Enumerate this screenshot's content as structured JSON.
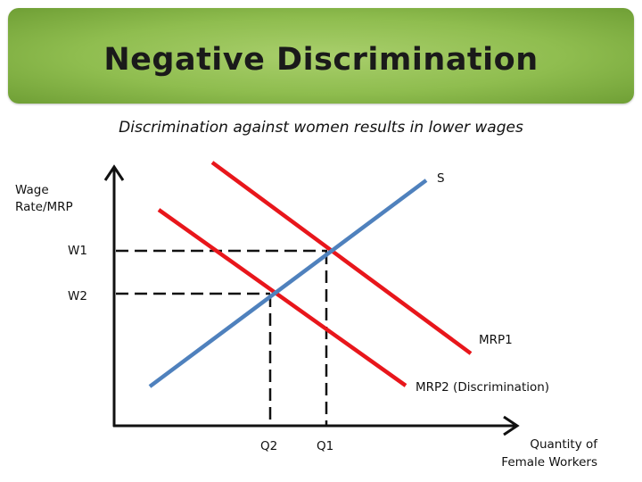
{
  "header": {
    "title": "Negative Discrimination",
    "subtitle": "Discrimination against women results in lower wages"
  },
  "diagram": {
    "y_axis_label_line1": "Wage",
    "y_axis_label_line2": "Rate/MRP",
    "x_axis_label_line1": "Quantity of",
    "x_axis_label_line2": "Female Workers",
    "supply_label": "S",
    "mrp1_label": "MRP1",
    "mrp2_label": "MRP2 (Discrimination)",
    "w1_label": "W1",
    "w2_label": "W2",
    "q1_label": "Q1",
    "q2_label": "Q2"
  },
  "colors": {
    "supply": "#4f81bd",
    "demand": "#e8161b",
    "axis": "#111111",
    "banner": "#8fbd4f"
  }
}
